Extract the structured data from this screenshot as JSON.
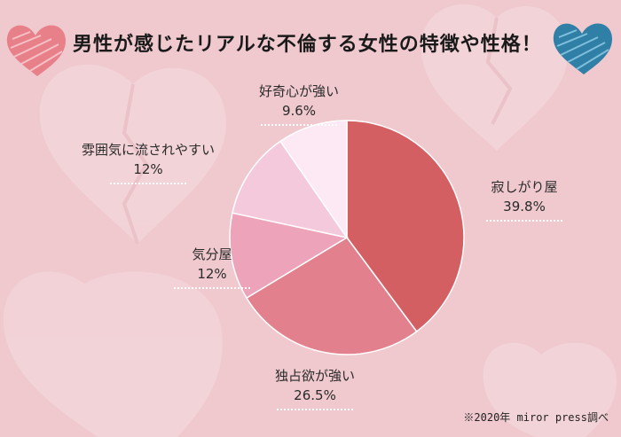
{
  "title": "男性が感じたリアルな不倫する女性の特徴や性格！",
  "source_note": "※2020年 miror press調べ",
  "colors": {
    "background": "#efc9ce",
    "heart_left": "#e8808a",
    "heart_right": "#2f7fa6"
  },
  "chart_data": {
    "type": "pie",
    "title": "男性が感じたリアルな不倫する女性の特徴や性格！",
    "slices": [
      {
        "label": "寂しがり屋",
        "value": 39.8,
        "value_label": "39.8%",
        "color": "#d45f63"
      },
      {
        "label": "独占欲が強い",
        "value": 26.5,
        "value_label": "26.5%",
        "color": "#e3808e"
      },
      {
        "label": "気分屋",
        "value": 12,
        "value_label": "12%",
        "color": "#eda4bb"
      },
      {
        "label": "雰囲気に流されやすい",
        "value": 12,
        "value_label": "12%",
        "color": "#f5c9dc"
      },
      {
        "label": "好奇心が強い",
        "value": 9.6,
        "value_label": "9.6%",
        "color": "#fde9f4"
      }
    ],
    "start": "12 o'clock",
    "direction": "clockwise",
    "legend": "none"
  }
}
